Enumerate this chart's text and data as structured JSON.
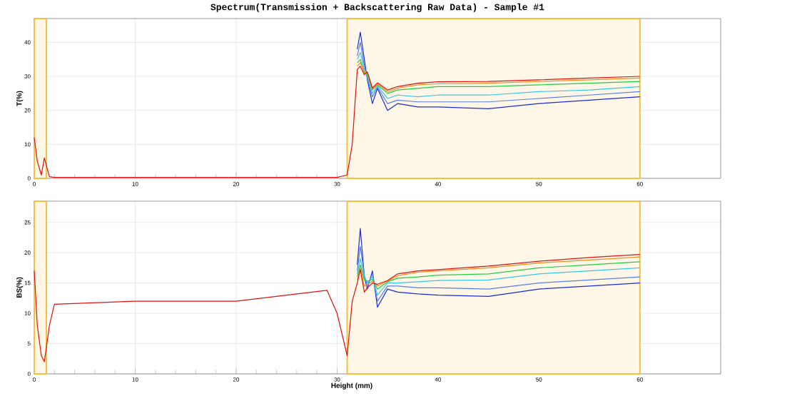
{
  "chart_data": [
    {
      "type": "line",
      "title": "Spectrum(Transmission + Backscattering Raw Data) - Sample #1",
      "ylabel": "T(%)",
      "xlim": [
        0,
        68
      ],
      "ylim": [
        0,
        47
      ],
      "xticks": [
        0,
        10,
        20,
        30,
        40,
        50,
        60
      ],
      "yticks": [
        0,
        10,
        20,
        30,
        40
      ],
      "grid": true,
      "x": [
        0,
        0.3,
        0.7,
        1.0,
        1.5,
        2,
        10,
        20,
        29,
        30,
        31,
        31.5,
        32,
        32.3,
        32.7,
        33,
        33.5,
        34,
        35,
        36,
        38,
        40,
        45,
        50,
        55,
        60
      ],
      "series": [
        {
          "color": "#1a2bd6",
          "values": [
            null,
            null,
            null,
            null,
            null,
            null,
            null,
            null,
            null,
            null,
            null,
            null,
            38,
            43,
            35,
            29,
            22,
            26.5,
            20,
            22,
            21,
            21,
            20.5,
            22,
            23,
            24
          ]
        },
        {
          "color": "#5a7ee8",
          "values": [
            null,
            null,
            null,
            null,
            null,
            null,
            null,
            null,
            null,
            null,
            null,
            null,
            36,
            40,
            33,
            29.5,
            24,
            26.8,
            22,
            23,
            22.5,
            22.5,
            22.5,
            23.5,
            24.5,
            25.5
          ]
        },
        {
          "color": "#33c8e8",
          "values": [
            null,
            null,
            null,
            null,
            null,
            null,
            null,
            null,
            null,
            null,
            null,
            null,
            35,
            37,
            32,
            30,
            25,
            27.2,
            23.5,
            24.5,
            24,
            24.5,
            24.5,
            25.5,
            26,
            27
          ]
        },
        {
          "color": "#22cc44",
          "values": [
            null,
            null,
            null,
            null,
            null,
            null,
            null,
            null,
            null,
            null,
            null,
            null,
            34,
            35,
            31,
            30.5,
            26,
            27.5,
            25,
            26,
            26.5,
            27,
            27,
            27.5,
            28,
            28.5
          ]
        },
        {
          "color": "#f09020",
          "values": [
            null,
            null,
            null,
            null,
            null,
            null,
            null,
            null,
            null,
            null,
            null,
            null,
            33,
            34,
            31.5,
            31,
            26.3,
            27.8,
            25.5,
            26.5,
            27.5,
            27.8,
            28,
            28.5,
            29,
            29.5
          ]
        },
        {
          "color": "#dd1111",
          "values": [
            12,
            5,
            1,
            6,
            0.5,
            0.3,
            0.3,
            0.3,
            0.3,
            0.3,
            1,
            10,
            32,
            33,
            30.5,
            31.3,
            26.6,
            28.1,
            26,
            27,
            28,
            28.4,
            28.5,
            29,
            29.5,
            30
          ]
        }
      ],
      "bands": [
        {
          "axis": "x",
          "from": 0,
          "to": 1.2,
          "color": "#f5c040"
        },
        {
          "axis": "x",
          "from": 31,
          "to": 60,
          "color": "#f5c040"
        }
      ]
    },
    {
      "type": "line",
      "xlabel": "Height (mm)",
      "ylabel": "BS(%)",
      "xlim": [
        0,
        68
      ],
      "ylim": [
        0,
        28.5
      ],
      "xticks": [
        0,
        10,
        20,
        30,
        40,
        50,
        60
      ],
      "yticks": [
        0,
        5,
        10,
        15,
        20,
        25
      ],
      "grid": true,
      "x": [
        0,
        0.3,
        0.7,
        1.0,
        1.5,
        2,
        10,
        20,
        29,
        30,
        31,
        31.5,
        32,
        32.3,
        32.7,
        33,
        33.5,
        34,
        35,
        36,
        38,
        40,
        45,
        50,
        55,
        60
      ],
      "series": [
        {
          "color": "#1a2bd6",
          "values": [
            null,
            null,
            null,
            null,
            null,
            null,
            null,
            null,
            null,
            null,
            null,
            null,
            18,
            24,
            16,
            14,
            17,
            11,
            14,
            13.5,
            13.2,
            13,
            12.8,
            14,
            14.5,
            15
          ]
        },
        {
          "color": "#5a7ee8",
          "values": [
            null,
            null,
            null,
            null,
            null,
            null,
            null,
            null,
            null,
            null,
            null,
            null,
            17,
            21,
            16.3,
            14.5,
            16.5,
            12,
            14.5,
            14.5,
            14.2,
            14.2,
            14,
            15,
            15.5,
            16
          ]
        },
        {
          "color": "#33c8e8",
          "values": [
            null,
            null,
            null,
            null,
            null,
            null,
            null,
            null,
            null,
            null,
            null,
            null,
            16.5,
            19,
            16,
            15,
            16,
            13,
            15,
            15,
            15.2,
            15.4,
            15.5,
            16.5,
            17,
            17.5
          ]
        },
        {
          "color": "#22cc44",
          "values": [
            null,
            null,
            null,
            null,
            null,
            null,
            null,
            null,
            null,
            null,
            null,
            null,
            16,
            18,
            15.5,
            15.3,
            15.6,
            14,
            15.2,
            15.8,
            16,
            16.3,
            16.5,
            17.5,
            18,
            18.5
          ]
        },
        {
          "color": "#f09020",
          "values": [
            null,
            null,
            null,
            null,
            null,
            null,
            null,
            null,
            null,
            null,
            null,
            null,
            15.5,
            17.5,
            14.5,
            14.7,
            15.3,
            14.5,
            15.3,
            16.2,
            16.8,
            17,
            17.5,
            18.3,
            18.8,
            19.3
          ]
        },
        {
          "color": "#dd1111",
          "values": [
            17,
            8,
            3,
            2,
            8,
            11.5,
            12,
            12,
            13.8,
            10,
            3,
            12,
            15,
            17.2,
            13.5,
            14.2,
            15,
            14.8,
            15.4,
            16.5,
            17,
            17.2,
            17.8,
            18.6,
            19.2,
            19.7
          ]
        }
      ],
      "bands": [
        {
          "axis": "x",
          "from": 0,
          "to": 1.2,
          "color": "#f5c040"
        },
        {
          "axis": "x",
          "from": 31,
          "to": 60,
          "color": "#f5c040"
        }
      ]
    }
  ]
}
